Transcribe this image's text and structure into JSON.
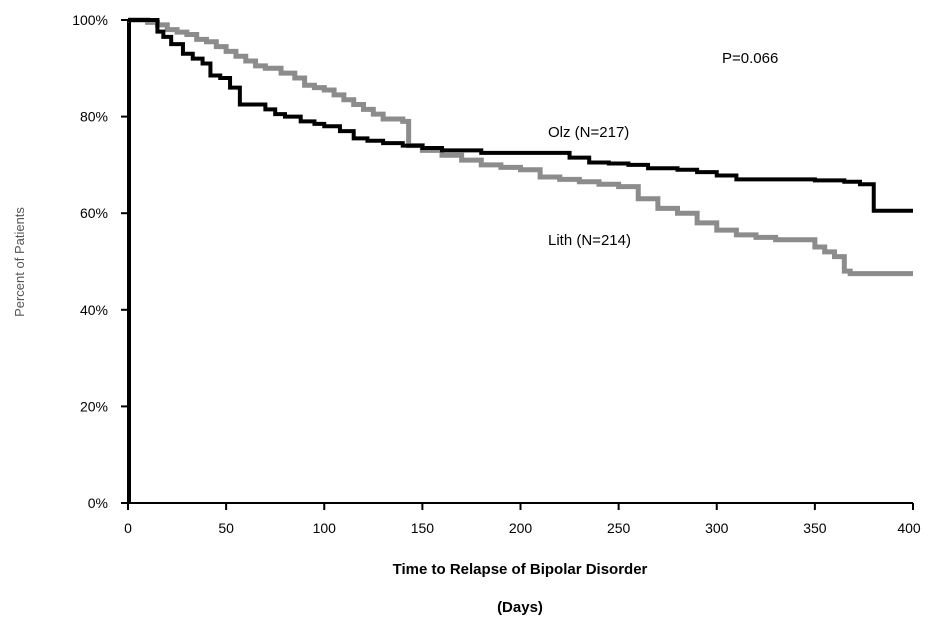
{
  "chart_data": {
    "type": "line",
    "title": "",
    "annotation": "P=0.066",
    "xlabel": "Time to Relapse of Bipolar Disorder",
    "xlabel_unit": "(Days)",
    "ylabel": "Percent of Patients",
    "xlim": [
      0,
      400
    ],
    "ylim": [
      0,
      100
    ],
    "x_ticks": [
      "0",
      "50",
      "100",
      "150",
      "200",
      "250",
      "300",
      "350",
      "400"
    ],
    "y_ticks": [
      "0%",
      "20%",
      "40%",
      "60%",
      "80%",
      "100%"
    ],
    "grid": false,
    "series": [
      {
        "name": "Olz (N=217)",
        "color": "#000000",
        "step": true,
        "x": [
          0,
          15,
          18,
          22,
          28,
          33,
          38,
          42,
          47,
          52,
          57,
          63,
          70,
          75,
          80,
          88,
          95,
          100,
          108,
          115,
          122,
          130,
          140,
          150,
          160,
          180,
          200,
          215,
          225,
          235,
          245,
          255,
          265,
          280,
          290,
          300,
          310,
          330,
          350,
          365,
          373,
          380,
          390,
          400
        ],
        "y": [
          100,
          97.6,
          96.5,
          95,
          93,
          92,
          91,
          88.5,
          88,
          86,
          82.5,
          82.5,
          81.5,
          80.5,
          80,
          79,
          78.5,
          78,
          77,
          75.5,
          75,
          74.5,
          74,
          73.5,
          73,
          72.5,
          72.5,
          72.5,
          71.5,
          70.5,
          70.3,
          70,
          69.3,
          69,
          68.5,
          67.8,
          67,
          67,
          66.8,
          66.5,
          66,
          60.5,
          60.5,
          60.5
        ]
      },
      {
        "name": "Lith (N=214)",
        "color": "#8c8c8c",
        "step": true,
        "x": [
          0,
          10,
          15,
          20,
          25,
          30,
          35,
          40,
          45,
          50,
          55,
          60,
          65,
          70,
          78,
          85,
          90,
          95,
          100,
          105,
          110,
          115,
          120,
          125,
          130,
          140,
          143,
          150,
          160,
          170,
          180,
          190,
          200,
          210,
          220,
          230,
          240,
          250,
          260,
          270,
          280,
          290,
          300,
          310,
          320,
          330,
          340,
          350,
          355,
          360,
          365,
          368,
          380,
          400
        ],
        "y": [
          100,
          99.5,
          99,
          98,
          97.5,
          97,
          96,
          95.5,
          94.5,
          93.5,
          92.5,
          91.5,
          90.5,
          90,
          89,
          88,
          86.5,
          86,
          85.5,
          84.5,
          83.5,
          82.5,
          81.5,
          80.5,
          79.5,
          79,
          74,
          73,
          72,
          71,
          70,
          69.5,
          69,
          67.5,
          67,
          66.5,
          66,
          65.5,
          63,
          61,
          60,
          58,
          56.5,
          55.5,
          55,
          54.5,
          54.5,
          53,
          52,
          51,
          48,
          47.5,
          47.5,
          47.5
        ]
      }
    ],
    "series_labels": [
      "Olz (N=217)",
      "Lith (N=214)"
    ]
  }
}
